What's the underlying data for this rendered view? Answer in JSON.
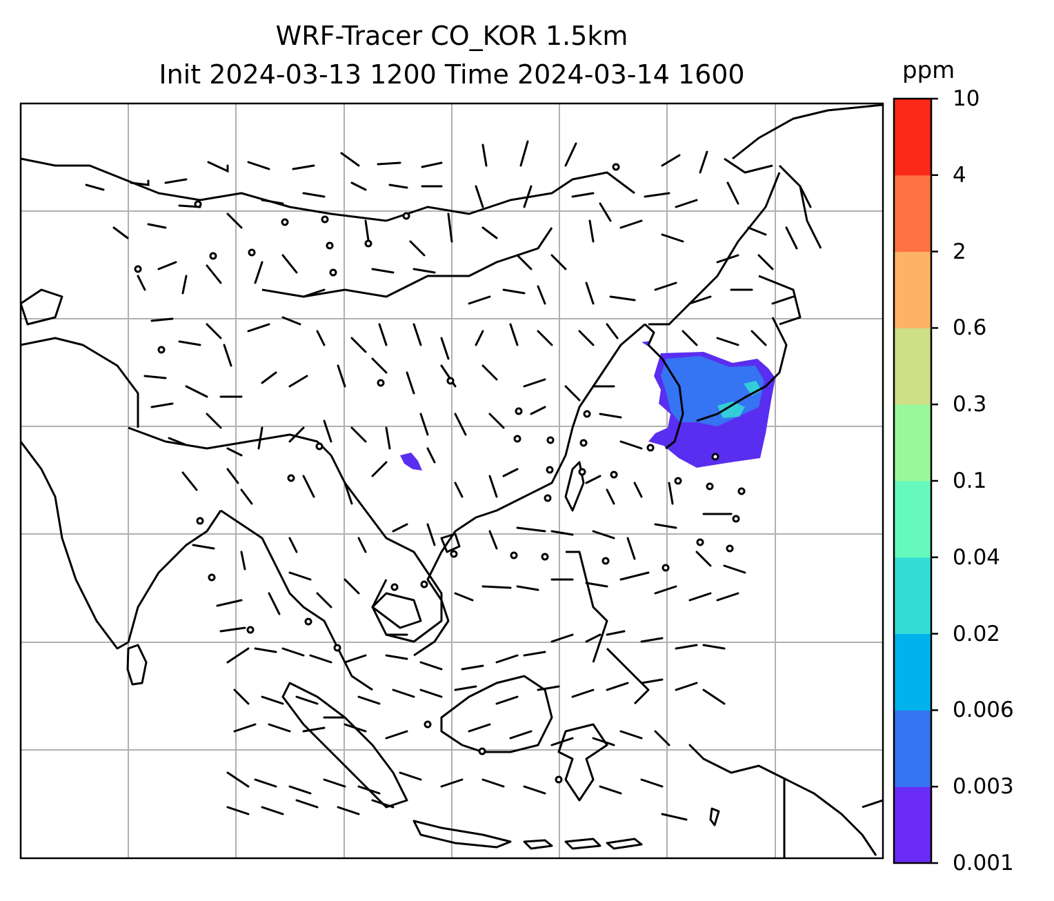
{
  "title": {
    "line1": "WRF-Tracer CO_KOR 1.5km",
    "line2": "Init 2024-03-13 1200 Time 2024-03-14 1600"
  },
  "colorbar": {
    "unit": "ppm",
    "levels": [
      "0.001",
      "0.003",
      "0.006",
      "0.02",
      "0.04",
      "0.1",
      "0.3",
      "0.6",
      "2",
      "4",
      "10"
    ],
    "colors": [
      "#6a2bf5",
      "#3574f2",
      "#00b3ec",
      "#33ddd5",
      "#66f9be",
      "#98f99a",
      "#cfdf86",
      "#fdb366",
      "#fd7341",
      "#fb2a18"
    ]
  },
  "map": {
    "tracer_field": "CO concentration (ppm)",
    "source_region": "Korea",
    "plume_color": "#5a2ef0",
    "plume_core_color": "#3574f2",
    "plume_edge_color": "#33ddd5",
    "coastline_color": "#000000",
    "gridline_color": "#b0b0b0",
    "wind_barb_color": "#000000"
  }
}
